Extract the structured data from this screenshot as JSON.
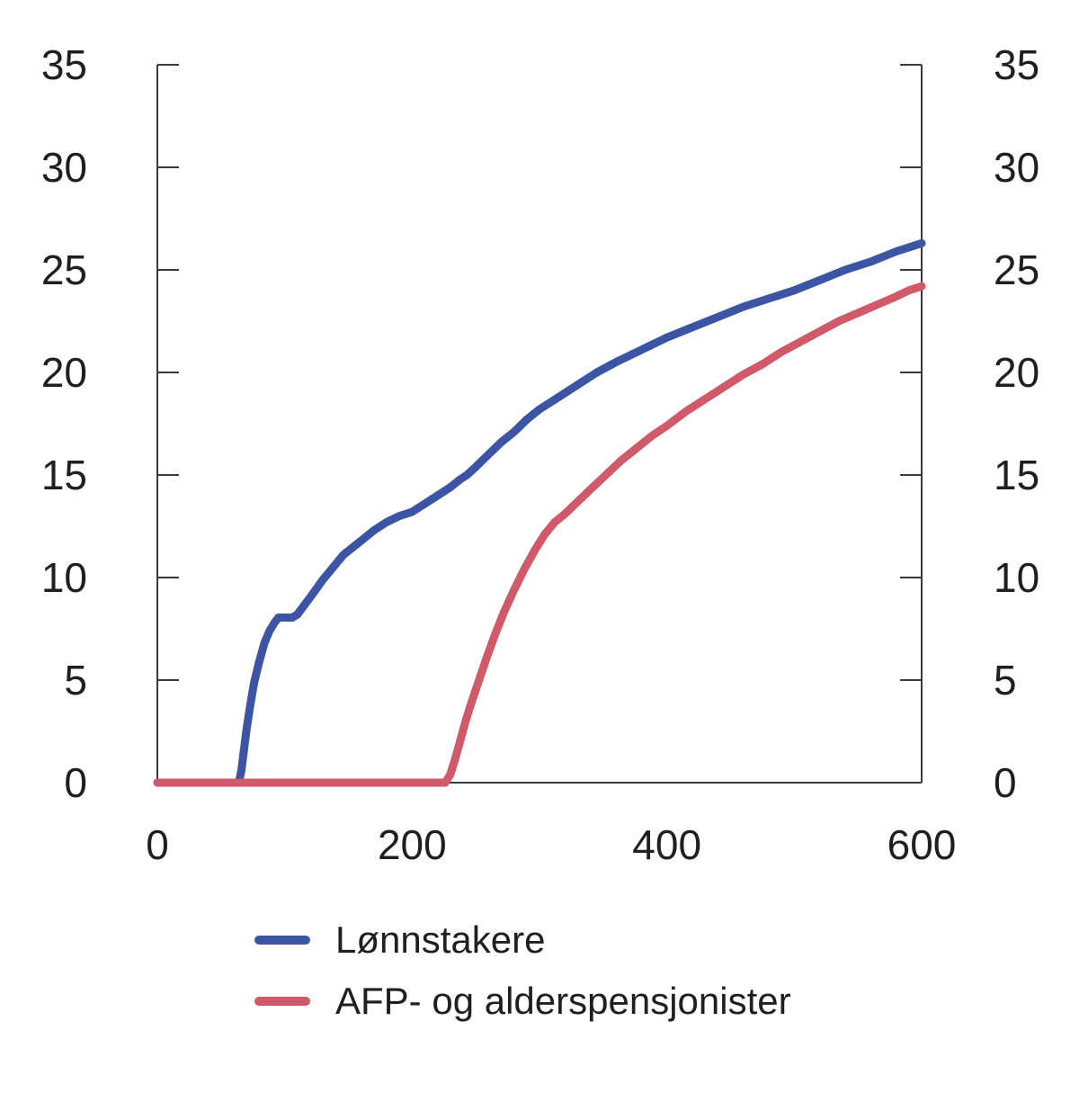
{
  "chart_data": {
    "type": "line",
    "title": "",
    "xlabel": "",
    "ylabel": "",
    "xlim": [
      0,
      600
    ],
    "ylim": [
      0,
      35
    ],
    "x_ticks": [
      "0",
      "200",
      "400",
      "600"
    ],
    "y_ticks": [
      "0",
      "5",
      "10",
      "15",
      "20",
      "25",
      "30",
      "35"
    ],
    "grid": false,
    "legend_position": "bottom-left",
    "axis_color": "#3a3a3a",
    "label_color": "#1f1f1f",
    "series": [
      {
        "name": "Lønnstakere",
        "color": "#3b54a4",
        "points": [
          [
            0,
            0
          ],
          [
            30,
            0
          ],
          [
            55,
            0
          ],
          [
            64,
            0
          ],
          [
            66,
            0.6
          ],
          [
            68,
            1.6
          ],
          [
            70,
            2.6
          ],
          [
            73,
            3.8
          ],
          [
            76,
            4.9
          ],
          [
            80,
            5.9
          ],
          [
            84,
            6.8
          ],
          [
            88,
            7.4
          ],
          [
            92,
            7.8
          ],
          [
            95,
            8.05
          ],
          [
            100,
            8.05
          ],
          [
            106,
            8.05
          ],
          [
            110,
            8.2
          ],
          [
            116,
            8.7
          ],
          [
            122,
            9.2
          ],
          [
            130,
            9.9
          ],
          [
            138,
            10.5
          ],
          [
            146,
            11.1
          ],
          [
            154,
            11.5
          ],
          [
            162,
            11.9
          ],
          [
            170,
            12.3
          ],
          [
            180,
            12.7
          ],
          [
            190,
            13.0
          ],
          [
            200,
            13.2
          ],
          [
            210,
            13.6
          ],
          [
            220,
            14.0
          ],
          [
            230,
            14.4
          ],
          [
            238,
            14.8
          ],
          [
            243,
            15.0
          ],
          [
            250,
            15.4
          ],
          [
            260,
            16.0
          ],
          [
            270,
            16.6
          ],
          [
            280,
            17.1
          ],
          [
            290,
            17.7
          ],
          [
            300,
            18.2
          ],
          [
            315,
            18.8
          ],
          [
            330,
            19.4
          ],
          [
            345,
            20.0
          ],
          [
            360,
            20.5
          ],
          [
            380,
            21.1
          ],
          [
            400,
            21.7
          ],
          [
            420,
            22.2
          ],
          [
            440,
            22.7
          ],
          [
            460,
            23.2
          ],
          [
            480,
            23.6
          ],
          [
            500,
            24.0
          ],
          [
            520,
            24.5
          ],
          [
            540,
            25.0
          ],
          [
            560,
            25.4
          ],
          [
            580,
            25.9
          ],
          [
            600,
            26.3
          ]
        ]
      },
      {
        "name": "AFP- og alderspensjonister",
        "color": "#d0596a",
        "points": [
          [
            0,
            0
          ],
          [
            60,
            0
          ],
          [
            120,
            0
          ],
          [
            180,
            0
          ],
          [
            226,
            0
          ],
          [
            230,
            0.4
          ],
          [
            234,
            1.2
          ],
          [
            238,
            2.1
          ],
          [
            242,
            3.0
          ],
          [
            246,
            3.8
          ],
          [
            252,
            4.9
          ],
          [
            258,
            6.0
          ],
          [
            265,
            7.2
          ],
          [
            272,
            8.3
          ],
          [
            280,
            9.4
          ],
          [
            288,
            10.4
          ],
          [
            296,
            11.3
          ],
          [
            304,
            12.1
          ],
          [
            312,
            12.7
          ],
          [
            320,
            13.1
          ],
          [
            330,
            13.7
          ],
          [
            340,
            14.3
          ],
          [
            352,
            15.0
          ],
          [
            364,
            15.7
          ],
          [
            376,
            16.3
          ],
          [
            388,
            16.9
          ],
          [
            400,
            17.4
          ],
          [
            415,
            18.1
          ],
          [
            430,
            18.7
          ],
          [
            445,
            19.3
          ],
          [
            460,
            19.9
          ],
          [
            475,
            20.4
          ],
          [
            490,
            21.0
          ],
          [
            505,
            21.5
          ],
          [
            520,
            22.0
          ],
          [
            535,
            22.5
          ],
          [
            550,
            22.9
          ],
          [
            565,
            23.3
          ],
          [
            580,
            23.7
          ],
          [
            590,
            24.0
          ],
          [
            600,
            24.2
          ]
        ]
      }
    ]
  }
}
